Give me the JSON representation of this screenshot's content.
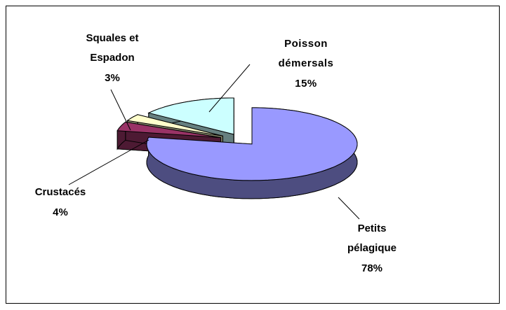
{
  "chart_data": {
    "type": "pie3d",
    "categories": [
      "Petits pélagique",
      "Crustacés",
      "Squales et Espadon",
      "Poisson démersals"
    ],
    "values": [
      78,
      4,
      3,
      15
    ],
    "value_labels": [
      "78%",
      "4%",
      "3%",
      "15%"
    ],
    "colors": [
      "#9999ff",
      "#993366",
      "#ffffcc",
      "#ccffff"
    ]
  }
}
